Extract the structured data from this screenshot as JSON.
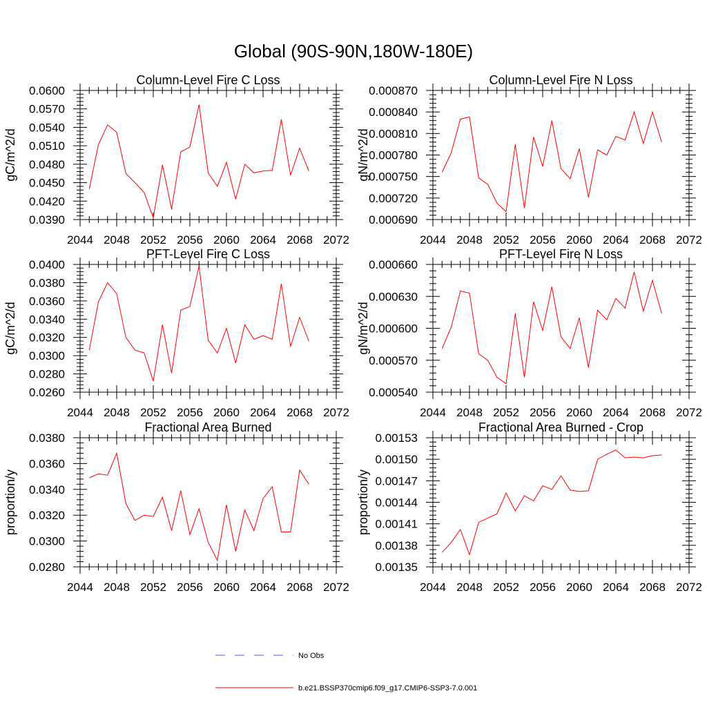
{
  "page_title": "Global (90S-90N,180W-180E)",
  "colors": {
    "series": "#ff0000",
    "obs": "#5a5aff",
    "axis": "#000000"
  },
  "legend": {
    "obs_label": "No Obs",
    "model_label": "b.e21.BSSP370cmip6.f09_g17.CMIP6-SSP3-7.0.001"
  },
  "chart_data": [
    {
      "type": "line",
      "title": "Column-Level Fire C Loss",
      "ylabel": "gC/m^2/d",
      "xlabel": "",
      "xlim": [
        2044,
        2072
      ],
      "ylim": [
        0.039,
        0.06
      ],
      "xticks": [
        "2044",
        "2048",
        "2052",
        "2056",
        "2060",
        "2064",
        "2068",
        "2072"
      ],
      "yticks": [
        "0.0390",
        "0.0420",
        "0.0450",
        "0.0480",
        "0.0510",
        "0.0540",
        "0.0570",
        "0.0600"
      ],
      "x": [
        2045,
        2046,
        2047,
        2048,
        2049,
        2050,
        2051,
        2052,
        2053,
        2054,
        2055,
        2056,
        2057,
        2058,
        2059,
        2060,
        2061,
        2062,
        2063,
        2064,
        2065,
        2066,
        2067,
        2068,
        2069
      ],
      "series": [
        {
          "values": [
            0.044,
            0.0512,
            0.0544,
            0.0532,
            0.0465,
            0.045,
            0.0434,
            0.0393,
            0.0479,
            0.0407,
            0.05,
            0.0508,
            0.0577,
            0.0466,
            0.0444,
            0.0483,
            0.0423,
            0.048,
            0.0466,
            0.0469,
            0.047,
            0.0553,
            0.0462,
            0.0506,
            0.0469
          ]
        }
      ]
    },
    {
      "type": "line",
      "title": "Column-Level Fire N Loss",
      "ylabel": "gN/m^2/d",
      "xlabel": "",
      "xlim": [
        2044,
        2072
      ],
      "ylim": [
        0.00069,
        0.00087
      ],
      "xticks": [
        "2044",
        "2048",
        "2052",
        "2056",
        "2060",
        "2064",
        "2068",
        "2072"
      ],
      "yticks": [
        "0.000690",
        "0.000720",
        "0.000750",
        "0.000780",
        "0.000810",
        "0.000840",
        "0.000870"
      ],
      "x": [
        2045,
        2046,
        2047,
        2048,
        2049,
        2050,
        2051,
        2052,
        2053,
        2054,
        2055,
        2056,
        2057,
        2058,
        2059,
        2060,
        2061,
        2062,
        2063,
        2064,
        2065,
        2066,
        2067,
        2068,
        2069
      ],
      "series": [
        {
          "values": [
            0.000756,
            0.000783,
            0.00083,
            0.000833,
            0.000748,
            0.000739,
            0.000713,
            0.000701,
            0.000795,
            0.000706,
            0.000805,
            0.000764,
            0.000828,
            0.000761,
            0.000747,
            0.000789,
            0.000721,
            0.000787,
            0.00078,
            0.000806,
            0.000801,
            0.00084,
            0.000796,
            0.00084,
            0.000798
          ]
        }
      ]
    },
    {
      "type": "line",
      "title": "PFT-Level Fire C Loss",
      "ylabel": "gC/m^2/d",
      "xlabel": "",
      "xlim": [
        2044,
        2072
      ],
      "ylim": [
        0.026,
        0.04
      ],
      "xticks": [
        "2044",
        "2048",
        "2052",
        "2056",
        "2060",
        "2064",
        "2068",
        "2072"
      ],
      "yticks": [
        "0.0260",
        "0.0280",
        "0.0300",
        "0.0320",
        "0.0340",
        "0.0360",
        "0.0380",
        "0.0400"
      ],
      "x": [
        2045,
        2046,
        2047,
        2048,
        2049,
        2050,
        2051,
        2052,
        2053,
        2054,
        2055,
        2056,
        2057,
        2058,
        2059,
        2060,
        2061,
        2062,
        2063,
        2064,
        2065,
        2066,
        2067,
        2068,
        2069
      ],
      "series": [
        {
          "values": [
            0.0306,
            0.0359,
            0.038,
            0.0368,
            0.032,
            0.0306,
            0.0303,
            0.0272,
            0.0334,
            0.0281,
            0.035,
            0.0354,
            0.0398,
            0.0317,
            0.0303,
            0.033,
            0.0292,
            0.0334,
            0.0318,
            0.0322,
            0.0318,
            0.0379,
            0.031,
            0.0342,
            0.0316
          ]
        }
      ]
    },
    {
      "type": "line",
      "title": "PFT-Level Fire N Loss",
      "ylabel": "gN/m^2/d",
      "xlabel": "",
      "xlim": [
        2044,
        2072
      ],
      "ylim": [
        0.00054,
        0.00066
      ],
      "xticks": [
        "2044",
        "2048",
        "2052",
        "2056",
        "2060",
        "2064",
        "2068",
        "2072"
      ],
      "yticks": [
        "0.000540",
        "0.000570",
        "0.000600",
        "0.000630",
        "0.000660"
      ],
      "x": [
        2045,
        2046,
        2047,
        2048,
        2049,
        2050,
        2051,
        2052,
        2053,
        2054,
        2055,
        2056,
        2057,
        2058,
        2059,
        2060,
        2061,
        2062,
        2063,
        2064,
        2065,
        2066,
        2067,
        2068,
        2069
      ],
      "series": [
        {
          "values": [
            0.000581,
            0.000601,
            0.000635,
            0.000633,
            0.000576,
            0.00057,
            0.000554,
            0.000548,
            0.000614,
            0.000554,
            0.000625,
            0.000598,
            0.000639,
            0.000592,
            0.000581,
            0.00061,
            0.000563,
            0.000617,
            0.000608,
            0.000628,
            0.000619,
            0.000653,
            0.000616,
            0.000645,
            0.000614
          ]
        }
      ]
    },
    {
      "type": "line",
      "title": "Fractional Area Burned",
      "ylabel": "proportion/y",
      "xlabel": "",
      "xlim": [
        2044,
        2072
      ],
      "ylim": [
        0.028,
        0.038
      ],
      "xticks": [
        "2044",
        "2048",
        "2052",
        "2056",
        "2060",
        "2064",
        "2068",
        "2072"
      ],
      "yticks": [
        "0.0280",
        "0.0300",
        "0.0320",
        "0.0340",
        "0.0360",
        "0.0380"
      ],
      "x": [
        2045,
        2046,
        2047,
        2048,
        2049,
        2050,
        2051,
        2052,
        2053,
        2054,
        2055,
        2056,
        2057,
        2058,
        2059,
        2060,
        2061,
        2062,
        2063,
        2064,
        2065,
        2066,
        2067,
        2068,
        2069
      ],
      "series": [
        {
          "values": [
            0.0349,
            0.0352,
            0.0351,
            0.0368,
            0.0329,
            0.0316,
            0.032,
            0.0319,
            0.0334,
            0.0308,
            0.0339,
            0.0305,
            0.0325,
            0.0299,
            0.0285,
            0.0328,
            0.0292,
            0.0324,
            0.0308,
            0.0333,
            0.0342,
            0.0307,
            0.0307,
            0.0355,
            0.0344
          ]
        }
      ]
    },
    {
      "type": "line",
      "title": "Fractional Area Burned - Crop",
      "ylabel": "proportion/y",
      "xlabel": "",
      "xlim": [
        2044,
        2072
      ],
      "ylim": [
        0.00135,
        0.00153
      ],
      "xticks": [
        "2044",
        "2048",
        "2052",
        "2056",
        "2060",
        "2064",
        "2068",
        "2072"
      ],
      "yticks": [
        "0.00135",
        "0.00138",
        "0.00141",
        "0.00144",
        "0.00147",
        "0.00150",
        "0.00153"
      ],
      "x": [
        2045,
        2046,
        2047,
        2048,
        2049,
        2050,
        2051,
        2052,
        2053,
        2054,
        2055,
        2056,
        2057,
        2058,
        2059,
        2060,
        2061,
        2062,
        2063,
        2064,
        2065,
        2066,
        2067,
        2068,
        2069
      ],
      "series": [
        {
          "values": [
            0.00137,
            0.001384,
            0.001402,
            0.001367,
            0.001412,
            0.001418,
            0.001424,
            0.001453,
            0.001428,
            0.001449,
            0.001442,
            0.001463,
            0.001458,
            0.001477,
            0.001457,
            0.001455,
            0.001456,
            0.0015,
            0.001507,
            0.001513,
            0.001502,
            0.001503,
            0.001502,
            0.001505,
            0.001506
          ]
        }
      ]
    }
  ]
}
